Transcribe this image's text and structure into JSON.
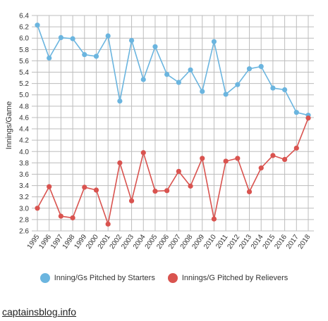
{
  "chart_data": {
    "type": "line",
    "ylabel": "Innings/Game",
    "ylim": [
      2.6,
      6.4
    ],
    "yticks": [
      "6.4",
      "6.2",
      "6.0",
      "5.8",
      "5.6",
      "5.4",
      "5.2",
      "5.0",
      "4.8",
      "4.6",
      "4.4",
      "4.2",
      "4.0",
      "3.8",
      "3.6",
      "3.4",
      "3.2",
      "3.0",
      "2.8",
      "2.6"
    ],
    "categories": [
      "1995",
      "1996",
      "1997",
      "1998",
      "1999",
      "2000",
      "2001",
      "2002",
      "2003",
      "2004",
      "2005",
      "2006",
      "2007",
      "2008",
      "2009",
      "2010",
      "2011",
      "2012",
      "2013",
      "2014",
      "2015",
      "2016",
      "2017",
      "2018"
    ],
    "grid": true,
    "legend_position": "bottom",
    "series": [
      {
        "name": "Inning/Gs Pitched by Starters",
        "color": "#6bb5df",
        "values": [
          6.23,
          5.65,
          6.01,
          5.99,
          5.71,
          5.68,
          6.04,
          4.89,
          5.96,
          5.27,
          5.85,
          5.36,
          5.22,
          5.44,
          5.06,
          5.94,
          5.01,
          5.18,
          5.46,
          5.5,
          5.12,
          5.09,
          4.69,
          4.64
        ]
      },
      {
        "name": "Innings/G Pitched by Relievers",
        "color": "#d9534f",
        "values": [
          3.0,
          3.38,
          2.86,
          2.83,
          3.37,
          3.32,
          2.72,
          3.8,
          3.13,
          3.98,
          3.3,
          3.31,
          3.65,
          3.39,
          3.88,
          2.81,
          3.83,
          3.88,
          3.29,
          3.71,
          3.93,
          3.86,
          4.06,
          4.59
        ]
      }
    ]
  },
  "footer": {
    "site": "captainsblog.info"
  }
}
